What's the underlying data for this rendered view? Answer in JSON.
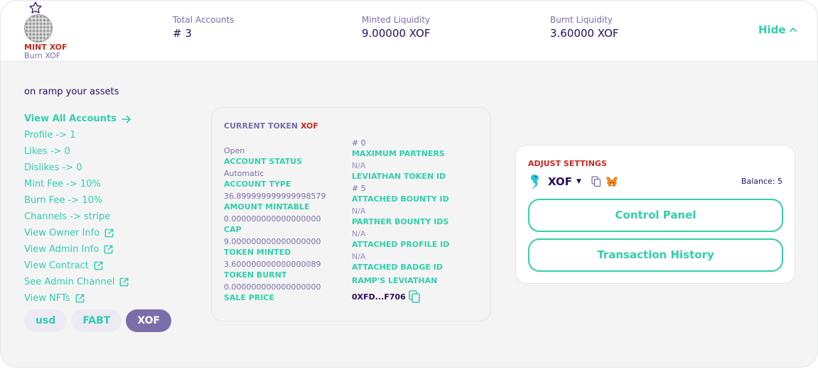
{
  "header": {
    "mint_label": "MINT XOF",
    "burn_label": "Burn XOF",
    "stats": [
      {
        "label": "Total Accounts",
        "value": "# 3"
      },
      {
        "label": "Minted Liquidity",
        "value": "9.00000 XOF"
      },
      {
        "label": "Burnt Liquidity",
        "value": "3.60000 XOF"
      }
    ],
    "hide_label": "Hide"
  },
  "sidebar": {
    "title": "on ramp your assets",
    "links": [
      {
        "label": "View All Accounts",
        "icon": "arrow-right-icon"
      },
      {
        "label": "Profile -> 1"
      },
      {
        "label": "Likes -> 0"
      },
      {
        "label": "Dislikes -> 0"
      },
      {
        "label": "Mint Fee -> 10%"
      },
      {
        "label": "Burn Fee -> 10%"
      },
      {
        "label": "Channels -> stripe"
      },
      {
        "label": "View Owner Info",
        "icon": "external-link-icon"
      },
      {
        "label": "View Admin Info",
        "icon": "external-link-icon"
      },
      {
        "label": "View Contract",
        "icon": "external-link-icon"
      },
      {
        "label": "See Admin Channel",
        "icon": "external-link-icon"
      },
      {
        "label": "View NFTs",
        "icon": "external-link-icon"
      }
    ],
    "tabs": [
      {
        "label": "usd",
        "active": false
      },
      {
        "label": "FABT",
        "active": false
      },
      {
        "label": "XOF",
        "active": true
      }
    ]
  },
  "token_card": {
    "title": "CURRENT TOKEN",
    "symbol": "XOF",
    "left_fields": [
      {
        "value": "Open",
        "label": "ACCOUNT STATUS"
      },
      {
        "value": "Automatic",
        "label": "ACCOUNT TYPE"
      },
      {
        "value": "36.899999999999998579",
        "label": "AMOUNT MINTABLE"
      },
      {
        "value": "0.000000000000000000",
        "label": "CAP"
      },
      {
        "value": "9.000000000000000000",
        "label": "TOKEN MINTED"
      },
      {
        "value": "3.600000000000000089",
        "label": "TOKEN BURNT"
      },
      {
        "value": "0.000000000000000000",
        "label": "SALE PRICE"
      }
    ],
    "right_fields": [
      {
        "value": "# 0",
        "label": "MAXIMUM PARTNERS"
      },
      {
        "value": "N/A",
        "label": "LEVIATHAN TOKEN ID"
      },
      {
        "value": "# 5",
        "label": "ATTACHED BOUNTY ID"
      },
      {
        "value": "N/A",
        "label": "PARTNER BOUNTY IDS"
      },
      {
        "value": "N/A",
        "label": "ATTACHED PROFILE ID"
      },
      {
        "value": "N/A",
        "label": "ATTACHED BADGE ID"
      }
    ],
    "leviathan_label": "RAMP'S LEVIATHAN",
    "leviathan_address": "0XFD...F706"
  },
  "adjust": {
    "title": "ADJUST SETTINGS",
    "currency": "XOF",
    "balance": "Balance: 5",
    "control_panel_label": "Control Panel",
    "transaction_history_label": "Transaction History"
  },
  "colors": {
    "accent": "#31d0aa",
    "text": "#280d5f",
    "secondary": "#7a6eaa",
    "danger": "#c8281e",
    "background": "#f4f4f5"
  }
}
